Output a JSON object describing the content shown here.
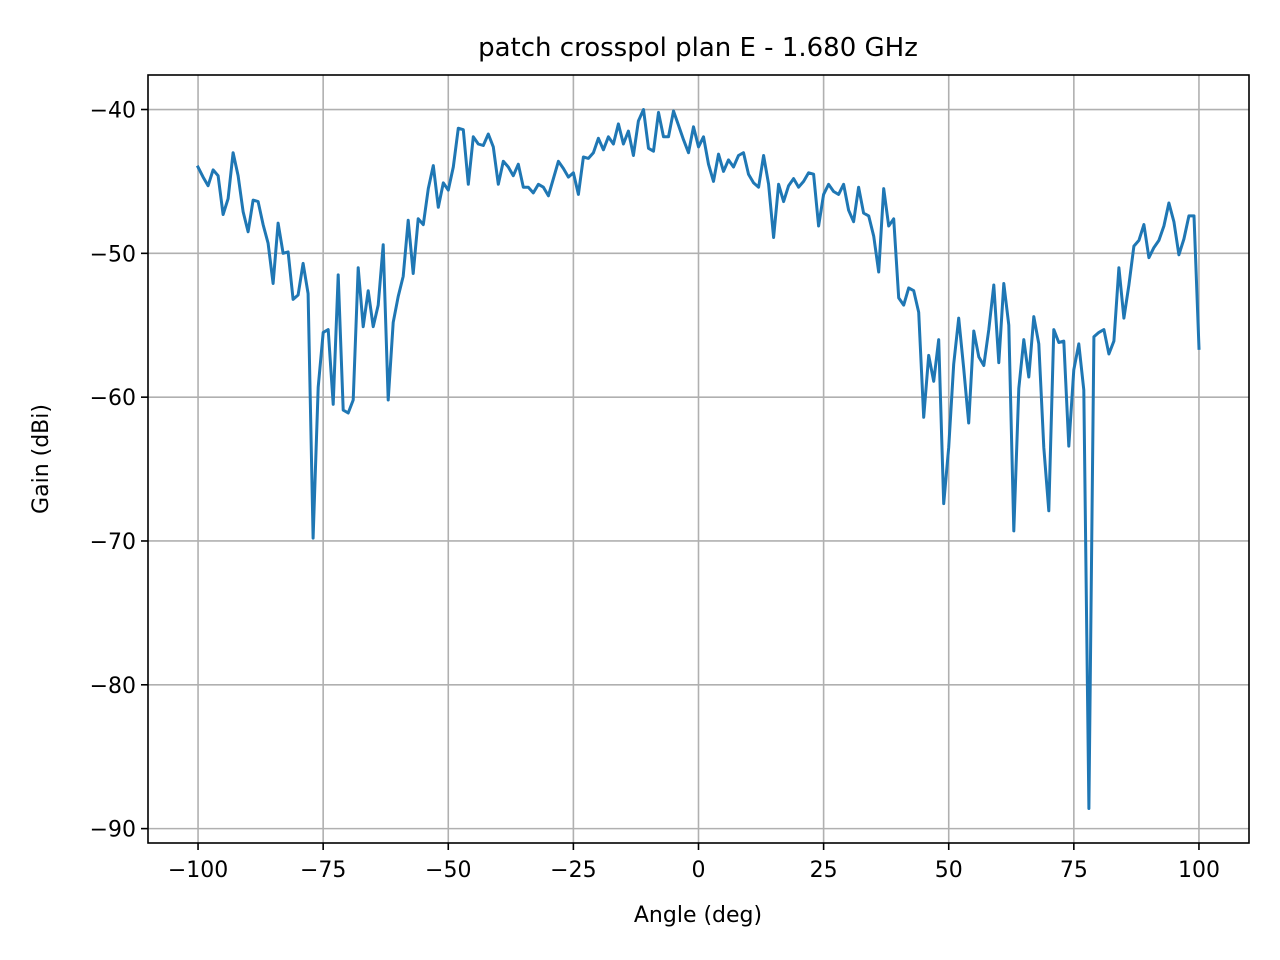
{
  "chart_data": {
    "type": "line",
    "title": "patch crosspol plan E - 1.680 GHz",
    "xlabel": "Angle (deg)",
    "ylabel": "Gain (dBi)",
    "xlim": [
      -110,
      110
    ],
    "ylim": [
      -91,
      -37.6
    ],
    "xticks": [
      -100,
      -75,
      -50,
      -25,
      0,
      25,
      50,
      75,
      100
    ],
    "xtick_labels": [
      "−100",
      "−75",
      "−50",
      "−25",
      "0",
      "25",
      "50",
      "75",
      "100"
    ],
    "yticks": [
      -40,
      -50,
      -60,
      -70,
      -80,
      -90
    ],
    "ytick_labels": [
      "−40",
      "−50",
      "−60",
      "−70",
      "−80",
      "−90"
    ],
    "grid": true,
    "series": [
      {
        "color": "#1f77b4",
        "x": [
          -100,
          -99,
          -98,
          -97,
          -96,
          -95,
          -94,
          -93,
          -92,
          -91,
          -90,
          -89,
          -88,
          -87,
          -86,
          -85,
          -84,
          -83,
          -82,
          -81,
          -80,
          -79,
          -78,
          -77,
          -76,
          -75,
          -74,
          -73,
          -72,
          -71,
          -70,
          -69,
          -68,
          -67,
          -66,
          -65,
          -64,
          -63,
          -62,
          -61,
          -60,
          -59,
          -58,
          -57,
          -56,
          -55,
          -54,
          -53,
          -52,
          -51,
          -50,
          -49,
          -48,
          -47,
          -46,
          -45,
          -44,
          -43,
          -42,
          -41,
          -40,
          -39,
          -38,
          -37,
          -36,
          -35,
          -34,
          -33,
          -32,
          -31,
          -30,
          -29,
          -28,
          -27,
          -26,
          -25,
          -24,
          -23,
          -22,
          -21,
          -20,
          -19,
          -18,
          -17,
          -16,
          -15,
          -14,
          -13,
          -12,
          -11,
          -10,
          -9,
          -8,
          -7,
          -6,
          -5,
          -4,
          -3,
          -2,
          -1,
          0,
          1,
          2,
          3,
          4,
          5,
          6,
          7,
          8,
          9,
          10,
          11,
          12,
          13,
          14,
          15,
          16,
          17,
          18,
          19,
          20,
          21,
          22,
          23,
          24,
          25,
          26,
          27,
          28,
          29,
          30,
          31,
          32,
          33,
          34,
          35,
          36,
          37,
          38,
          39,
          40,
          41,
          42,
          43,
          44,
          45,
          46,
          47,
          48,
          49,
          50,
          51,
          52,
          53,
          54,
          55,
          56,
          57,
          58,
          59,
          60,
          61,
          62,
          63,
          64,
          65,
          66,
          67,
          68,
          69,
          70,
          71,
          72,
          73,
          74,
          75,
          76,
          77,
          78,
          79,
          80,
          81,
          82,
          83,
          84,
          85,
          86,
          87,
          88,
          89,
          90,
          91,
          92,
          93,
          94,
          95,
          96,
          97,
          98,
          99,
          100
        ],
        "y": [
          -44.0,
          -44.7,
          -45.3,
          -44.2,
          -44.6,
          -47.3,
          -46.2,
          -43.0,
          -44.6,
          -47.1,
          -48.5,
          -46.3,
          -46.4,
          -48.0,
          -49.3,
          -52.1,
          -47.9,
          -50.0,
          -49.9,
          -53.2,
          -52.9,
          -50.7,
          -52.8,
          -69.8,
          -59.3,
          -55.5,
          -55.3,
          -60.5,
          -51.5,
          -60.9,
          -61.1,
          -60.2,
          -51.0,
          -55.1,
          -52.6,
          -55.1,
          -53.6,
          -49.4,
          -60.2,
          -54.8,
          -53.0,
          -51.6,
          -47.7,
          -51.4,
          -47.6,
          -48.0,
          -45.5,
          -43.9,
          -46.8,
          -45.1,
          -45.6,
          -44.0,
          -41.3,
          -41.4,
          -45.2,
          -41.9,
          -42.4,
          -42.5,
          -41.7,
          -42.6,
          -45.2,
          -43.6,
          -44.0,
          -44.6,
          -43.8,
          -45.4,
          -45.4,
          -45.8,
          -45.2,
          -45.4,
          -46.0,
          -44.8,
          -43.6,
          -44.1,
          -44.7,
          -44.4,
          -45.9,
          -43.3,
          -43.4,
          -43.0,
          -42.0,
          -42.8,
          -41.9,
          -42.4,
          -41.0,
          -42.4,
          -41.5,
          -43.2,
          -40.8,
          -40.0,
          -42.7,
          -42.9,
          -40.2,
          -41.9,
          -41.9,
          -40.1,
          -41.1,
          -42.1,
          -43.0,
          -41.2,
          -42.6,
          -41.9,
          -43.8,
          -45.0,
          -43.1,
          -44.3,
          -43.5,
          -44.0,
          -43.2,
          -43.0,
          -44.5,
          -45.1,
          -45.4,
          -43.2,
          -45.2,
          -48.9,
          -45.2,
          -46.4,
          -45.3,
          -44.8,
          -45.4,
          -45.0,
          -44.4,
          -44.5,
          -48.1,
          -45.9,
          -45.2,
          -45.7,
          -45.9,
          -45.2,
          -47.0,
          -47.8,
          -45.4,
          -47.2,
          -47.4,
          -48.8,
          -51.3,
          -45.5,
          -48.1,
          -47.6,
          -53.1,
          -53.6,
          -52.4,
          -52.6,
          -54.1,
          -61.4,
          -57.1,
          -58.9,
          -56.0,
          -67.4,
          -63.5,
          -57.7,
          -54.5,
          -58.0,
          -61.8,
          -55.4,
          -57.2,
          -57.8,
          -55.3,
          -52.2,
          -57.6,
          -52.1,
          -55.0,
          -69.3,
          -59.4,
          -56.0,
          -58.6,
          -54.4,
          -56.3,
          -63.5,
          -67.9,
          -55.3,
          -56.2,
          -56.1,
          -63.4,
          -58.1,
          -56.3,
          -59.5,
          -88.6,
          -55.8,
          -55.5,
          -55.3,
          -57.0,
          -56.1,
          -51.0,
          -54.5,
          -52.2,
          -49.5,
          -49.1,
          -48.0,
          -50.3,
          -49.6,
          -49.1,
          -48.1,
          -46.5,
          -47.8,
          -50.1,
          -49.0,
          -47.4,
          -47.4,
          -56.6
        ]
      }
    ]
  }
}
